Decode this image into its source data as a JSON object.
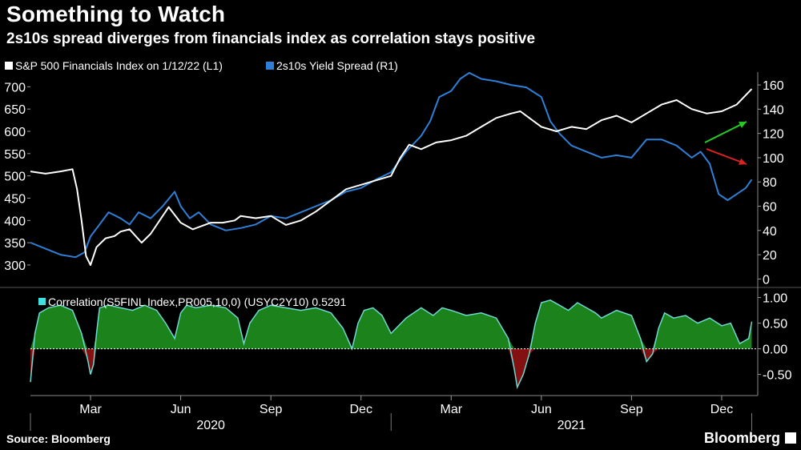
{
  "header": {
    "title": "Something to Watch",
    "subtitle": "2s10s spread diverges from financials index as correlation stays positive"
  },
  "footer": {
    "source": "Source: Bloomberg",
    "brand": "Bloomberg"
  },
  "colors": {
    "background": "#000000",
    "financials": "#ffffff",
    "spread": "#2f7fd6",
    "correlation_line": "#6fd8d0",
    "correlation_pos_fill": "#1e8a1e",
    "correlation_neg_fill": "#8a1212",
    "arrow_up": "#22cc22",
    "arrow_down": "#dd2222"
  },
  "chart_data": [
    {
      "type": "line",
      "legend": [
        {
          "label": "S&P 500 Financials Index on 1/12/22 (L1)",
          "color": "#ffffff"
        },
        {
          "label": "2s10s Yield Spread (R1)",
          "color": "#2f7fd6"
        }
      ],
      "x_tick_labels": [
        "Mar",
        "Jun",
        "Sep",
        "Dec",
        "Mar",
        "Jun",
        "Sep",
        "Dec"
      ],
      "x_tick_positions": [
        2.0,
        5.0,
        8.0,
        11.0,
        14.0,
        17.0,
        20.0,
        23.0
      ],
      "year_labels": [
        {
          "label": "2020",
          "x": 6.0
        },
        {
          "label": "2021",
          "x": 18.0
        }
      ],
      "xlim": [
        0.0,
        24.2
      ],
      "left_axis": {
        "ticks": [
          300,
          350,
          400,
          450,
          500,
          550,
          600,
          650,
          700
        ],
        "ylim": [
          255,
          715
        ]
      },
      "right_axis": {
        "ticks": [
          0,
          20,
          40,
          60,
          80,
          100,
          120,
          140,
          160
        ],
        "ylim": [
          -5,
          164
        ]
      },
      "series": [
        {
          "name": "S&P 500 Financials Index on 1/12/22 (L1)",
          "axis": "left",
          "x": [
            0.0,
            0.5,
            1.0,
            1.4,
            1.55,
            1.7,
            1.85,
            2.0,
            2.2,
            2.5,
            2.8,
            3.0,
            3.3,
            3.7,
            4.0,
            4.3,
            4.6,
            5.0,
            5.4,
            5.8,
            6.0,
            6.4,
            6.8,
            7.0,
            7.5,
            8.0,
            8.5,
            9.0,
            9.5,
            10.0,
            10.5,
            11.0,
            11.5,
            12.0,
            12.3,
            12.6,
            13.0,
            13.5,
            14.0,
            14.5,
            15.0,
            15.5,
            16.0,
            16.3,
            16.6,
            17.0,
            17.5,
            18.0,
            18.5,
            19.0,
            19.5,
            20.0,
            20.5,
            21.0,
            21.5,
            22.0,
            22.5,
            23.0,
            23.5,
            24.0
          ],
          "y": [
            510,
            505,
            510,
            515,
            470,
            400,
            320,
            300,
            340,
            360,
            365,
            375,
            380,
            350,
            370,
            400,
            430,
            395,
            380,
            390,
            395,
            395,
            400,
            410,
            405,
            410,
            390,
            400,
            420,
            445,
            470,
            480,
            490,
            500,
            540,
            570,
            560,
            575,
            580,
            590,
            610,
            630,
            640,
            645,
            630,
            610,
            600,
            610,
            605,
            625,
            635,
            620,
            640,
            660,
            670,
            650,
            640,
            645,
            660,
            695
          ]
        },
        {
          "name": "2s10s Yield Spread (R1)",
          "axis": "right",
          "x": [
            0.0,
            0.5,
            1.0,
            1.5,
            1.8,
            2.0,
            2.3,
            2.6,
            3.0,
            3.3,
            3.6,
            4.0,
            4.4,
            4.8,
            5.0,
            5.3,
            5.6,
            6.0,
            6.5,
            7.0,
            7.5,
            8.0,
            8.5,
            9.0,
            9.5,
            10.0,
            10.5,
            11.0,
            11.5,
            12.0,
            12.5,
            13.0,
            13.3,
            13.6,
            14.0,
            14.3,
            14.6,
            15.0,
            15.5,
            16.0,
            16.5,
            17.0,
            17.3,
            17.6,
            18.0,
            18.5,
            19.0,
            19.5,
            20.0,
            20.5,
            21.0,
            21.5,
            22.0,
            22.3,
            22.6,
            22.9,
            23.2,
            23.5,
            23.8,
            24.0
          ],
          "y": [
            30,
            25,
            20,
            18,
            22,
            35,
            45,
            55,
            50,
            45,
            55,
            50,
            60,
            72,
            60,
            50,
            55,
            45,
            40,
            42,
            45,
            52,
            50,
            55,
            60,
            65,
            72,
            75,
            82,
            88,
            105,
            118,
            130,
            150,
            155,
            165,
            170,
            165,
            163,
            160,
            158,
            150,
            130,
            120,
            110,
            105,
            100,
            102,
            100,
            115,
            115,
            110,
            100,
            105,
            95,
            70,
            65,
            70,
            75,
            82
          ]
        },
        {
          "type": "area",
          "name": "Correlation(S5FINL Index,PR005,10,0) (USYC2Y10) 0.5291",
          "panel": "lower",
          "ylim": [
            -0.85,
            1.15
          ],
          "y_ticks": [
            -0.5,
            0.0,
            0.5,
            1.0
          ],
          "y_tick_labels": [
            "-0.50",
            "0.00",
            "0.50",
            "1.00"
          ],
          "last_value": "0.5291",
          "x": [
            0.0,
            0.15,
            0.3,
            0.6,
            1.0,
            1.4,
            1.7,
            1.9,
            2.0,
            2.1,
            2.2,
            2.3,
            2.6,
            3.0,
            3.4,
            3.8,
            4.2,
            4.5,
            4.8,
            5.0,
            5.2,
            5.5,
            6.0,
            6.5,
            6.9,
            7.1,
            7.3,
            7.6,
            8.0,
            8.5,
            9.0,
            9.5,
            10.0,
            10.4,
            10.7,
            10.9,
            11.1,
            11.4,
            11.7,
            12.0,
            12.5,
            13.0,
            13.4,
            13.7,
            14.0,
            14.5,
            15.0,
            15.5,
            15.9,
            16.1,
            16.2,
            16.4,
            16.6,
            16.8,
            17.0,
            17.3,
            17.6,
            17.9,
            18.2,
            18.5,
            18.8,
            19.0,
            19.5,
            20.0,
            20.3,
            20.5,
            20.7,
            20.9,
            21.1,
            21.4,
            21.8,
            22.2,
            22.6,
            23.0,
            23.3,
            23.6,
            23.9,
            24.0
          ],
          "y": [
            -0.65,
            0.3,
            0.7,
            0.8,
            0.85,
            0.75,
            0.3,
            -0.2,
            -0.5,
            -0.3,
            0.3,
            0.8,
            0.85,
            0.8,
            0.75,
            0.85,
            0.75,
            0.5,
            0.2,
            0.7,
            0.85,
            0.8,
            0.85,
            0.8,
            0.6,
            0.1,
            0.5,
            0.75,
            0.85,
            0.8,
            0.75,
            0.8,
            0.7,
            0.4,
            0.0,
            0.5,
            0.75,
            0.8,
            0.65,
            0.3,
            0.6,
            0.8,
            0.65,
            0.8,
            0.75,
            0.65,
            0.7,
            0.6,
            0.2,
            -0.4,
            -0.75,
            -0.5,
            -0.1,
            0.5,
            0.9,
            0.95,
            0.85,
            0.75,
            0.9,
            0.8,
            0.7,
            0.6,
            0.75,
            0.65,
            0.2,
            -0.25,
            -0.1,
            0.4,
            0.7,
            0.6,
            0.65,
            0.5,
            0.6,
            0.45,
            0.5,
            0.1,
            0.2,
            0.53
          ]
        }
      ]
    }
  ]
}
